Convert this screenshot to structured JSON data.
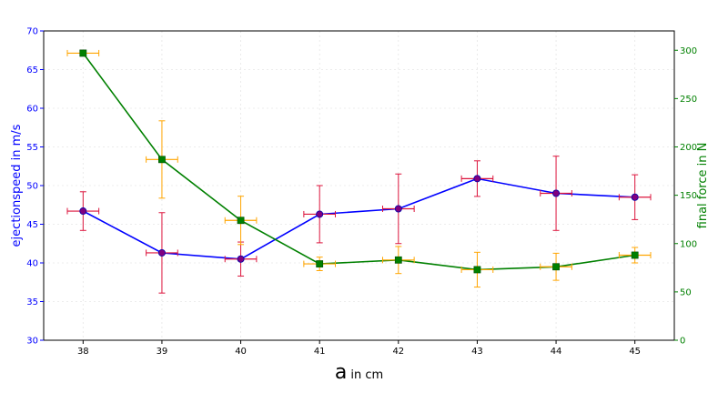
{
  "chart_data": {
    "type": "line",
    "x": [
      38,
      39,
      40,
      41,
      42,
      43,
      44,
      45
    ],
    "x_ticks": [
      "38",
      "39",
      "40",
      "41",
      "42",
      "43",
      "44",
      "45"
    ],
    "xlim": [
      37.5,
      45.5
    ],
    "xlabel_main": "a",
    "xlabel_unit": "in cm",
    "x_error": 0.2,
    "y_left": {
      "label": "ejectionspeed in m/s",
      "color": "#0000ff",
      "lim": [
        30,
        70
      ],
      "ticks": [
        "30",
        "35",
        "40",
        "45",
        "50",
        "55",
        "60",
        "65",
        "70"
      ],
      "tick_values": [
        30,
        35,
        40,
        45,
        50,
        55,
        60,
        65,
        70
      ]
    },
    "y_right": {
      "label": "final force in N",
      "color": "#008000",
      "lim": [
        0,
        320
      ],
      "ticks": [
        "0",
        "50",
        "100",
        "150",
        "200",
        "250",
        "300"
      ],
      "tick_values": [
        0,
        50,
        100,
        150,
        200,
        250,
        300
      ]
    },
    "grid": true,
    "series": [
      {
        "name": "ejection speed",
        "axis": "left",
        "line_color": "#0000ff",
        "marker": "circle",
        "marker_color": "#800080",
        "error_color": "#dc143c",
        "values": [
          46.7,
          41.3,
          40.5,
          46.3,
          47.0,
          50.9,
          49.0,
          48.5
        ],
        "y_error": [
          2.5,
          5.2,
          2.2,
          3.7,
          4.5,
          2.3,
          4.8,
          2.9
        ]
      },
      {
        "name": "final force",
        "axis": "right",
        "line_color": "#008000",
        "marker": "square",
        "marker_color": "#008000",
        "error_color": "#ffa500",
        "values": [
          297,
          187,
          124,
          79,
          83,
          73,
          76,
          88
        ],
        "y_error": [
          2,
          40,
          25,
          7,
          14,
          18,
          14,
          8
        ]
      }
    ]
  }
}
